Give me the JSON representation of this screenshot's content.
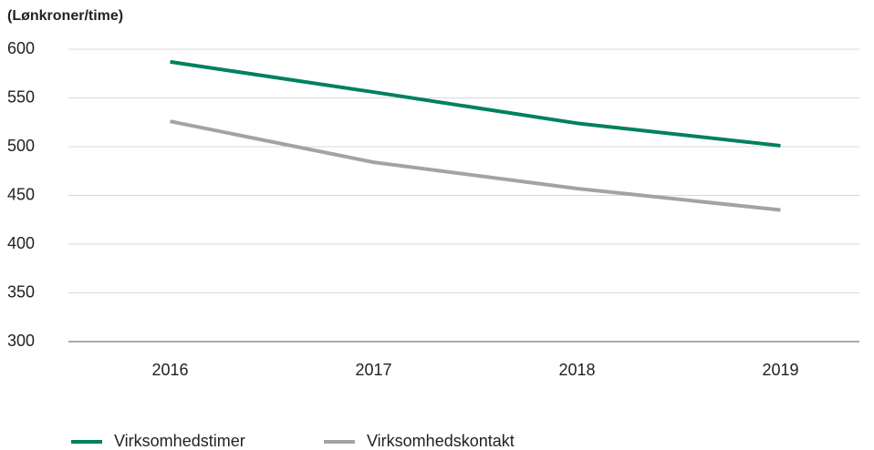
{
  "chart_data": {
    "type": "line",
    "y_axis_label": "(Lønkroner/time)",
    "categories": [
      "2016",
      "2017",
      "2018",
      "2019"
    ],
    "series": [
      {
        "name": "Virksomhedstimer",
        "color": "#00805f",
        "values": [
          587,
          556,
          524,
          501
        ]
      },
      {
        "name": "Virksomhedskontakt",
        "color": "#a3a3a3",
        "values": [
          526,
          484,
          457,
          435
        ]
      }
    ],
    "ylim": [
      300,
      600
    ],
    "yticks": [
      300,
      350,
      400,
      450,
      500,
      550,
      600
    ],
    "grid": true
  }
}
